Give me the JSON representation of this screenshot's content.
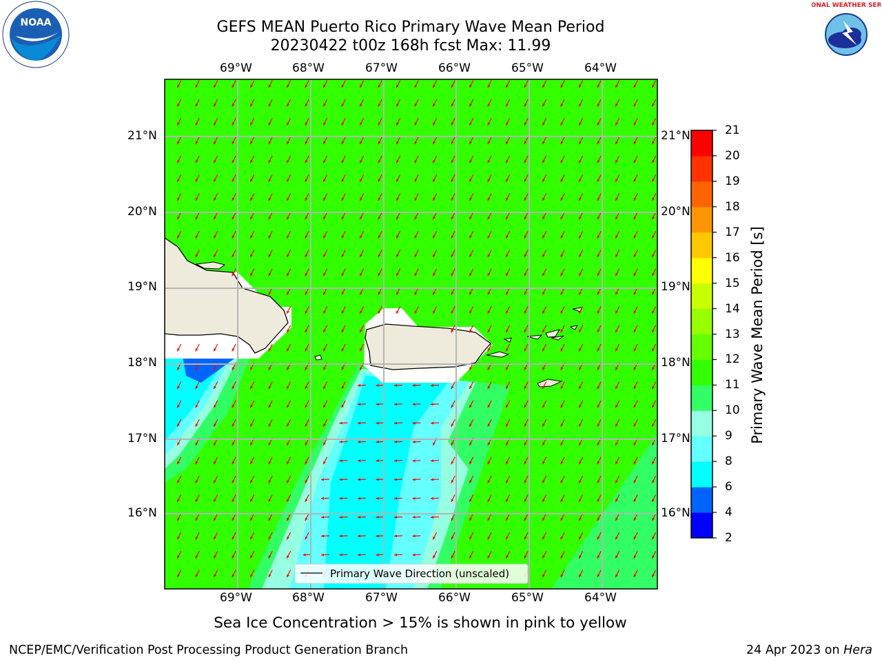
{
  "header": {
    "title_line1": "GEFS MEAN Puerto Rico Primary Wave Mean Period",
    "title_line2": "20230422 t00z 168h fcst   Max: 11.99"
  },
  "map": {
    "lon_labels": [
      "69°W",
      "68°W",
      "67°W",
      "66°W",
      "65°W",
      "64°W"
    ],
    "lat_labels": [
      "21°N",
      "20°N",
      "19°N",
      "18°N",
      "17°N",
      "16°N"
    ],
    "legend_label": "Primary Wave Direction (unscaled)",
    "caption": "Sea Ice Concentration > 15% is shown in pink to yellow"
  },
  "colorbar": {
    "label": "Primary Wave Mean Period [s]",
    "ticks": [
      "2",
      "4",
      "6",
      "8",
      "9",
      "10",
      "11",
      "12",
      "13",
      "14",
      "15",
      "16",
      "17",
      "18",
      "19",
      "20",
      "21"
    ],
    "colors": [
      "#0000ff",
      "#0064ff",
      "#00ffff",
      "#64ffff",
      "#96ffe1",
      "#32ff64",
      "#32ff00",
      "#64ff00",
      "#96ff00",
      "#c8ff00",
      "#ffff00",
      "#ffc800",
      "#ff9600",
      "#ff6400",
      "#ff3200",
      "#ff0000"
    ]
  },
  "colors": {
    "land": "#efebdc",
    "arrow": "#ff0000",
    "grid": "#b4b4b4"
  },
  "footer": {
    "left": "NCEP/EMC/Verification Post Processing Product Generation Branch",
    "right_date": "24 Apr 2023 on ",
    "right_host": "Hera"
  },
  "logos": {
    "noaa_text": "NOAA",
    "nws_text": "NATIONAL WEATHER SERVICE"
  }
}
